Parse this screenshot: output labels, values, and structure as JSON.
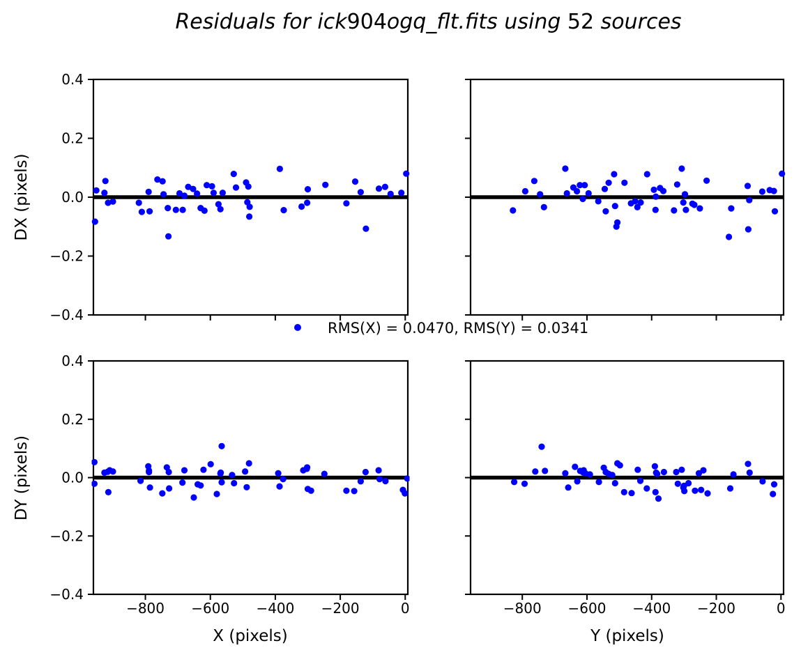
{
  "title": {
    "full_text": "Residuals for ick904ogq_flt.fits using 52 sources",
    "segments": [
      {
        "text": "Residuals for ick",
        "italic": true
      },
      {
        "text": "904",
        "italic": false
      },
      {
        "text": "ogq_flt.fits using ",
        "italic": true
      },
      {
        "text": "52",
        "italic": false
      },
      {
        "text": " sources",
        "italic": true
      }
    ]
  },
  "legend": {
    "label": "RMS(X) = 0.0470, RMS(Y) = 0.0341",
    "rms_x": "0.0470",
    "rms_y": "0.0341",
    "marker_color": "#0000ff"
  },
  "colors": {
    "marker": "#0000ff",
    "zero_line": "#000000",
    "axis": "#000000",
    "background": "#ffffff"
  },
  "chart_data": [
    {
      "type": "scatter",
      "name": "top-left",
      "xlabel": "",
      "ylabel": "DX (pixels)",
      "xlim": [
        -960,
        8
      ],
      "ylim": [
        -0.4,
        0.4
      ],
      "xticks": [
        -800,
        -600,
        -400,
        -200,
        0
      ],
      "xtick_labels": [
        "−800",
        "−600",
        "−400",
        "−200",
        "0"
      ],
      "show_xtick_labels": false,
      "yticks": [
        0.4,
        0.2,
        0.0,
        -0.2,
        -0.4
      ],
      "ytick_labels": [
        "0.4",
        "0.2",
        "0.0",
        "−0.2",
        "−0.4"
      ],
      "show_ytick_labels": true,
      "zero_line": 0.0,
      "points": [
        [
          -955,
          -0.083
        ],
        [
          -951,
          0.023
        ],
        [
          -926,
          0.015
        ],
        [
          -923,
          0.055
        ],
        [
          -915,
          -0.019
        ],
        [
          -900,
          -0.015
        ],
        [
          -820,
          -0.019
        ],
        [
          -811,
          -0.05
        ],
        [
          -790,
          0.018
        ],
        [
          -787,
          -0.048
        ],
        [
          -763,
          0.06
        ],
        [
          -747,
          0.054
        ],
        [
          -744,
          0.01
        ],
        [
          -731,
          -0.037
        ],
        [
          -729,
          -0.133
        ],
        [
          -706,
          -0.043
        ],
        [
          -695,
          0.013
        ],
        [
          -685,
          -0.043
        ],
        [
          -680,
          0.005
        ],
        [
          -668,
          0.035
        ],
        [
          -653,
          0.028
        ],
        [
          -641,
          0.012
        ],
        [
          -630,
          -0.037
        ],
        [
          -618,
          -0.046
        ],
        [
          -611,
          0.041
        ],
        [
          -595,
          0.037
        ],
        [
          -590,
          0.015
        ],
        [
          -575,
          -0.024
        ],
        [
          -569,
          -0.041
        ],
        [
          -562,
          0.015
        ],
        [
          -528,
          0.079
        ],
        [
          -521,
          0.033
        ],
        [
          -490,
          0.05
        ],
        [
          -486,
          -0.017
        ],
        [
          -483,
          0.036
        ],
        [
          -480,
          -0.066
        ],
        [
          -479,
          -0.033
        ],
        [
          -386,
          0.096
        ],
        [
          -374,
          -0.044
        ],
        [
          -319,
          -0.032
        ],
        [
          -302,
          -0.019
        ],
        [
          -300,
          0.027
        ],
        [
          -246,
          0.042
        ],
        [
          -181,
          -0.021
        ],
        [
          -154,
          0.053
        ],
        [
          -137,
          0.017
        ],
        [
          -121,
          -0.107
        ],
        [
          -81,
          0.029
        ],
        [
          -62,
          0.035
        ],
        [
          -45,
          0.011
        ],
        [
          -12,
          0.015
        ],
        [
          3,
          0.08
        ]
      ]
    },
    {
      "type": "scatter",
      "name": "top-right",
      "xlabel": "",
      "ylabel": "",
      "xlim": [
        -960,
        8
      ],
      "ylim": [
        -0.4,
        0.4
      ],
      "xticks": [
        -800,
        -600,
        -400,
        -200,
        0
      ],
      "xtick_labels": [
        "−800",
        "−600",
        "−400",
        "−200",
        "0"
      ],
      "show_xtick_labels": false,
      "yticks": [
        0.4,
        0.2,
        0.0,
        -0.2,
        -0.4
      ],
      "ytick_labels": [
        "0.4",
        "0.2",
        "0.0",
        "−0.2",
        "−0.4"
      ],
      "show_ytick_labels": false,
      "zero_line": 0.0,
      "points": [
        [
          -829,
          -0.045
        ],
        [
          -791,
          0.02
        ],
        [
          -763,
          0.055
        ],
        [
          -745,
          0.01
        ],
        [
          -733,
          -0.034
        ],
        [
          -667,
          0.097
        ],
        [
          -662,
          0.013
        ],
        [
          -642,
          0.033
        ],
        [
          -631,
          0.02
        ],
        [
          -622,
          0.041
        ],
        [
          -613,
          -0.006
        ],
        [
          -607,
          0.041
        ],
        [
          -595,
          0.013
        ],
        [
          -565,
          -0.014
        ],
        [
          -545,
          0.028
        ],
        [
          -542,
          -0.048
        ],
        [
          -533,
          0.049
        ],
        [
          -516,
          0.078
        ],
        [
          -513,
          -0.03
        ],
        [
          -509,
          -0.1
        ],
        [
          -506,
          -0.086
        ],
        [
          -484,
          0.049
        ],
        [
          -464,
          -0.021
        ],
        [
          -451,
          -0.014
        ],
        [
          -444,
          -0.034
        ],
        [
          -434,
          -0.018
        ],
        [
          -414,
          0.078
        ],
        [
          -393,
          0.025
        ],
        [
          -388,
          -0.043
        ],
        [
          -387,
          0.002
        ],
        [
          -374,
          0.031
        ],
        [
          -364,
          0.021
        ],
        [
          -331,
          -0.045
        ],
        [
          -321,
          0.043
        ],
        [
          -307,
          0.097
        ],
        [
          -302,
          -0.018
        ],
        [
          -297,
          0.01
        ],
        [
          -294,
          -0.043
        ],
        [
          -274,
          -0.022
        ],
        [
          -268,
          -0.026
        ],
        [
          -251,
          -0.038
        ],
        [
          -230,
          0.056
        ],
        [
          -161,
          -0.135
        ],
        [
          -154,
          -0.038
        ],
        [
          -103,
          0.038
        ],
        [
          -101,
          -0.109
        ],
        [
          -98,
          -0.01
        ],
        [
          -58,
          0.019
        ],
        [
          -35,
          0.024
        ],
        [
          -22,
          0.021
        ],
        [
          -19,
          -0.048
        ],
        [
          3,
          0.08
        ]
      ]
    },
    {
      "type": "scatter",
      "name": "bottom-left",
      "xlabel": "X (pixels)",
      "ylabel": "DY (pixels)",
      "xlim": [
        -960,
        8
      ],
      "ylim": [
        -0.4,
        0.4
      ],
      "xticks": [
        -800,
        -600,
        -400,
        -200,
        0
      ],
      "xtick_labels": [
        "−800",
        "−600",
        "−400",
        "−200",
        "0"
      ],
      "show_xtick_labels": true,
      "yticks": [
        0.4,
        0.2,
        0.0,
        -0.2,
        -0.4
      ],
      "ytick_labels": [
        "0.4",
        "0.2",
        "0.0",
        "−0.2",
        "−0.4"
      ],
      "show_ytick_labels": true,
      "zero_line": 0.0,
      "points": [
        [
          -957,
          0.053
        ],
        [
          -957,
          -0.021
        ],
        [
          -926,
          0.017
        ],
        [
          -916,
          0.02
        ],
        [
          -914,
          -0.05
        ],
        [
          -910,
          0.025
        ],
        [
          -900,
          0.021
        ],
        [
          -815,
          -0.011
        ],
        [
          -791,
          0.039
        ],
        [
          -789,
          0.019
        ],
        [
          -789,
          0.024
        ],
        [
          -786,
          -0.034
        ],
        [
          -748,
          -0.054
        ],
        [
          -734,
          0.035
        ],
        [
          -728,
          0.019
        ],
        [
          -727,
          -0.037
        ],
        [
          -686,
          -0.017
        ],
        [
          -680,
          0.025
        ],
        [
          -651,
          -0.068
        ],
        [
          -639,
          -0.023
        ],
        [
          -630,
          -0.027
        ],
        [
          -621,
          0.027
        ],
        [
          -599,
          0.046
        ],
        [
          -580,
          -0.056
        ],
        [
          -569,
          0.014
        ],
        [
          -568,
          0.017
        ],
        [
          -565,
          0.108
        ],
        [
          -565,
          -0.016
        ],
        [
          -533,
          0.009
        ],
        [
          -527,
          -0.019
        ],
        [
          -493,
          0.021
        ],
        [
          -488,
          -0.033
        ],
        [
          -481,
          0.049
        ],
        [
          -391,
          0.015
        ],
        [
          -387,
          -0.03
        ],
        [
          -376,
          -0.005
        ],
        [
          -314,
          0.025
        ],
        [
          -303,
          0.03
        ],
        [
          -302,
          0.035
        ],
        [
          -300,
          -0.039
        ],
        [
          -290,
          -0.045
        ],
        [
          -249,
          0.013
        ],
        [
          -181,
          -0.045
        ],
        [
          -157,
          -0.046
        ],
        [
          -137,
          -0.013
        ],
        [
          -122,
          0.019
        ],
        [
          -82,
          0.025
        ],
        [
          -79,
          -0.005
        ],
        [
          -61,
          -0.012
        ],
        [
          -7,
          -0.042
        ],
        [
          -1,
          -0.054
        ],
        [
          6,
          -0.003
        ]
      ]
    },
    {
      "type": "scatter",
      "name": "bottom-right",
      "xlabel": "Y (pixels)",
      "ylabel": "",
      "xlim": [
        -960,
        8
      ],
      "ylim": [
        -0.4,
        0.4
      ],
      "xticks": [
        -800,
        -600,
        -400,
        -200,
        0
      ],
      "xtick_labels": [
        "−800",
        "−600",
        "−400",
        "−200",
        "0"
      ],
      "show_xtick_labels": true,
      "yticks": [
        0.4,
        0.2,
        0.0,
        -0.2,
        -0.4
      ],
      "ytick_labels": [
        "0.4",
        "0.2",
        "0.0",
        "−0.2",
        "−0.4"
      ],
      "show_ytick_labels": false,
      "zero_line": 0.0,
      "points": [
        [
          -825,
          -0.015
        ],
        [
          -793,
          -0.021
        ],
        [
          -760,
          0.021
        ],
        [
          -740,
          0.106
        ],
        [
          -730,
          0.023
        ],
        [
          -667,
          0.015
        ],
        [
          -658,
          -0.034
        ],
        [
          -637,
          0.037
        ],
        [
          -630,
          -0.013
        ],
        [
          -621,
          0.023
        ],
        [
          -612,
          0.018
        ],
        [
          -610,
          0.025
        ],
        [
          -605,
          0.015
        ],
        [
          -591,
          0.011
        ],
        [
          -563,
          -0.015
        ],
        [
          -548,
          0.034
        ],
        [
          -542,
          0.019
        ],
        [
          -533,
          0.013
        ],
        [
          -522,
          0.009
        ],
        [
          -513,
          -0.019
        ],
        [
          -506,
          0.049
        ],
        [
          -498,
          0.042
        ],
        [
          -485,
          -0.05
        ],
        [
          -462,
          -0.053
        ],
        [
          -443,
          0.027
        ],
        [
          -435,
          -0.011
        ],
        [
          -415,
          -0.037
        ],
        [
          -390,
          0.039
        ],
        [
          -388,
          -0.05
        ],
        [
          -386,
          0.017
        ],
        [
          -383,
          0.013
        ],
        [
          -379,
          -0.072
        ],
        [
          -362,
          0.019
        ],
        [
          -324,
          0.019
        ],
        [
          -319,
          -0.021
        ],
        [
          -307,
          0.027
        ],
        [
          -302,
          -0.034
        ],
        [
          -300,
          -0.028
        ],
        [
          -299,
          -0.046
        ],
        [
          -286,
          -0.019
        ],
        [
          -266,
          -0.045
        ],
        [
          -254,
          0.015
        ],
        [
          -247,
          -0.042
        ],
        [
          -240,
          0.025
        ],
        [
          -227,
          -0.054
        ],
        [
          -157,
          -0.037
        ],
        [
          -147,
          0.011
        ],
        [
          -102,
          0.047
        ],
        [
          -97,
          0.017
        ],
        [
          -57,
          -0.013
        ],
        [
          -25,
          -0.056
        ],
        [
          -21,
          -0.023
        ]
      ]
    }
  ]
}
